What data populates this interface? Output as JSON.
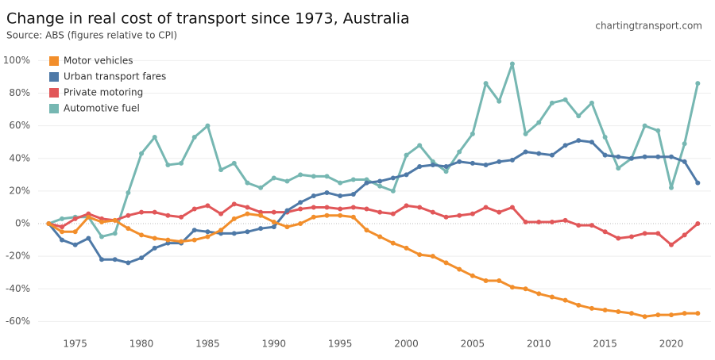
{
  "chart_data": {
    "type": "line",
    "title": "Change in real cost of transport since 1973, Australia",
    "subtitle": "Source: ABS (figures relative to CPI)",
    "watermark": "chartingtransport.com",
    "x": [
      1973,
      1974,
      1975,
      1976,
      1977,
      1978,
      1979,
      1980,
      1981,
      1982,
      1983,
      1984,
      1985,
      1986,
      1987,
      1988,
      1989,
      1990,
      1991,
      1992,
      1993,
      1994,
      1995,
      1996,
      1997,
      1998,
      1999,
      2000,
      2001,
      2002,
      2003,
      2004,
      2005,
      2006,
      2007,
      2008,
      2009,
      2010,
      2011,
      2012,
      2013,
      2014,
      2015,
      2016,
      2017,
      2018,
      2019,
      2020,
      2021,
      2022
    ],
    "series": [
      {
        "name": "Motor vehicles",
        "color": "#f28e2b",
        "values": [
          0,
          -5,
          -5,
          4,
          1,
          2,
          -3,
          -7,
          -9,
          -10,
          -11,
          -10,
          -8,
          -4,
          3,
          6,
          5,
          1,
          -2,
          0,
          4,
          5,
          5,
          4,
          -4,
          -8,
          -12,
          -15,
          -19,
          -20,
          -24,
          -28,
          -32,
          -35,
          -35,
          -39,
          -40,
          -43,
          -45,
          -47,
          -50,
          -52,
          -53,
          -54,
          -55,
          -57,
          -56,
          -56,
          -55,
          -55
        ]
      },
      {
        "name": "Urban transport fares",
        "color": "#4e79a7",
        "values": [
          0,
          -10,
          -13,
          -9,
          -22,
          -22,
          -24,
          -21,
          -15,
          -12,
          -12,
          -4,
          -5,
          -6,
          -6,
          -5,
          -3,
          -2,
          8,
          13,
          17,
          19,
          17,
          18,
          25,
          26,
          28,
          30,
          35,
          36,
          35,
          38,
          37,
          36,
          38,
          39,
          44,
          43,
          42,
          48,
          51,
          50,
          42,
          41,
          40,
          41,
          41,
          41,
          38,
          25
        ]
      },
      {
        "name": "Private motoring",
        "color": "#e15759",
        "values": [
          0,
          -2,
          3,
          6,
          3,
          2,
          5,
          7,
          7,
          5,
          4,
          9,
          11,
          6,
          12,
          10,
          7,
          7,
          7,
          9,
          10,
          10,
          9,
          10,
          9,
          7,
          6,
          11,
          10,
          7,
          4,
          5,
          6,
          10,
          7,
          10,
          1,
          1,
          1,
          2,
          -1,
          -1,
          -5,
          -9,
          -8,
          -6,
          -6,
          -13,
          -7,
          0
        ]
      },
      {
        "name": "Automotive fuel",
        "color": "#76b7b2",
        "values": [
          0,
          3,
          4,
          4,
          -8,
          -6,
          19,
          43,
          53,
          36,
          37,
          53,
          60,
          33,
          37,
          25,
          22,
          28,
          26,
          30,
          29,
          29,
          25,
          27,
          27,
          23,
          20,
          42,
          48,
          38,
          32,
          44,
          55,
          86,
          75,
          98,
          55,
          62,
          74,
          76,
          66,
          74,
          53,
          34,
          40,
          60,
          57,
          22,
          49,
          86
        ]
      }
    ],
    "xlim": [
      1972.2,
      2023
    ],
    "xticks": [
      1975,
      1980,
      1985,
      1990,
      1995,
      2000,
      2005,
      2010,
      2015,
      2020
    ],
    "ylim": [
      -71,
      107
    ],
    "yticks": [
      {
        "value": -60,
        "label": "-60%"
      },
      {
        "value": -40,
        "label": "-40%"
      },
      {
        "value": -20,
        "label": "-20%"
      },
      {
        "value": 0,
        "label": "0%"
      },
      {
        "value": 20,
        "label": "20%"
      },
      {
        "value": 40,
        "label": "40%"
      },
      {
        "value": 60,
        "label": "60%"
      },
      {
        "value": 80,
        "label": "80%"
      },
      {
        "value": 100,
        "label": "100%"
      }
    ],
    "grid": true,
    "legend": "top-left"
  }
}
